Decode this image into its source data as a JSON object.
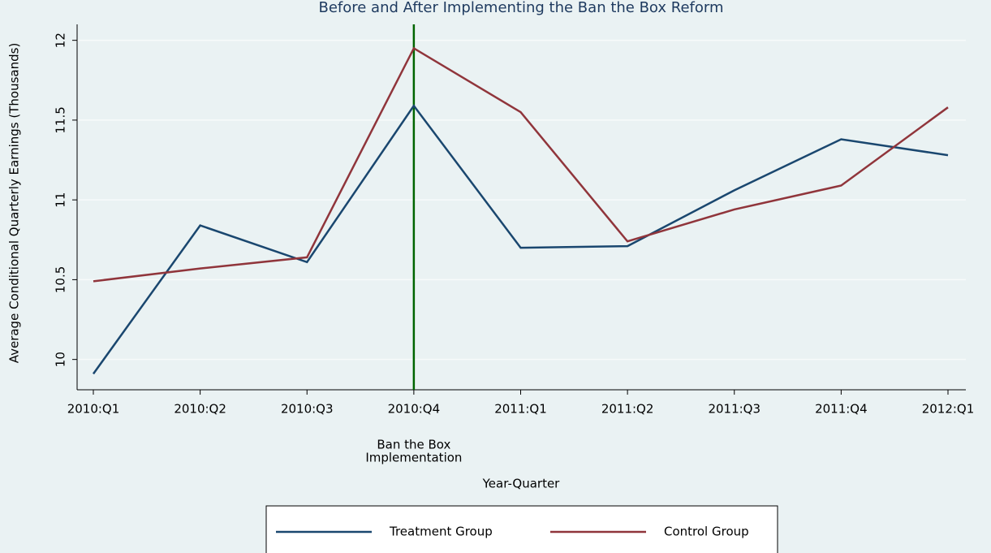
{
  "chart_data": {
    "type": "line",
    "title": "Before and After Implementing the Ban the Box Reform",
    "x_label": "Year-Quarter",
    "y_label": "Average Conditional Quarterly Earnings (Thousands)",
    "categories": [
      "2010:Q1",
      "2010:Q2",
      "2010:Q3",
      "2010:Q4",
      "2011:Q1",
      "2011:Q2",
      "2011:Q3",
      "2011:Q4",
      "2012:Q1"
    ],
    "series": [
      {
        "name": "Treatment Group",
        "color": "#1a476f",
        "values": [
          9.91,
          10.84,
          10.61,
          11.59,
          10.7,
          10.71,
          11.06,
          11.38,
          11.28
        ]
      },
      {
        "name": "Control Group",
        "color": "#90353b",
        "values": [
          10.49,
          10.57,
          10.64,
          11.95,
          11.55,
          10.74,
          10.94,
          11.09,
          11.58
        ]
      }
    ],
    "ylim": [
      9.81,
      12.1
    ],
    "yticks": [
      10,
      10.5,
      11,
      11.5,
      12
    ],
    "grid": true,
    "vline": {
      "x": "2010:Q4",
      "color": "#006400",
      "label": [
        "Ban the Box",
        "Implementation"
      ]
    },
    "legend": "bottom"
  }
}
